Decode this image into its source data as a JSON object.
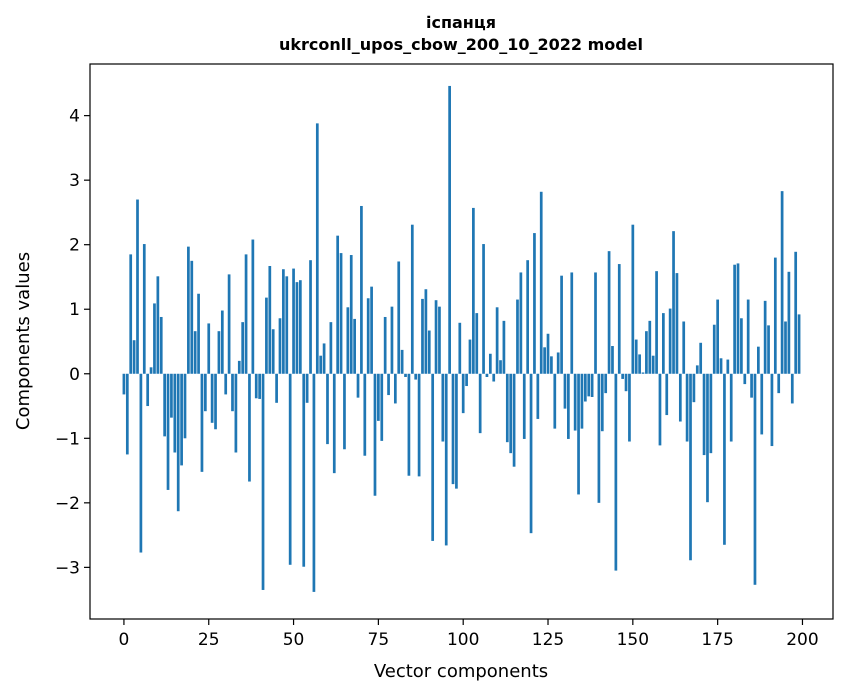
{
  "chart_data": {
    "type": "bar",
    "title_line1": "іспанця",
    "title_line2": "ukrconll_upos_cbow_200_10_2022 model",
    "xlabel": "Vector components",
    "ylabel": "Components values",
    "xlim": [
      -10,
      209
    ],
    "ylim": [
      -3.8,
      4.8
    ],
    "xticks": [
      0,
      25,
      50,
      75,
      100,
      125,
      150,
      175,
      200
    ],
    "yticks": [
      -3,
      -2,
      -1,
      0,
      1,
      2,
      3,
      4
    ],
    "ytick_labels": [
      "−3",
      "−2",
      "−1",
      "0",
      "1",
      "2",
      "3",
      "4"
    ],
    "bar_color": "#1f77b4",
    "grid": false,
    "values": [
      -0.32,
      -1.25,
      1.85,
      0.52,
      2.7,
      -2.77,
      2.01,
      -0.5,
      0.1,
      1.09,
      1.51,
      0.88,
      -0.97,
      -1.8,
      -0.68,
      -1.22,
      -2.13,
      -1.42,
      -1.0,
      1.97,
      1.75,
      0.66,
      1.24,
      -1.52,
      -0.58,
      0.78,
      -0.76,
      -0.86,
      0.66,
      0.98,
      -0.32,
      1.54,
      -0.58,
      -1.22,
      0.2,
      0.8,
      1.85,
      -1.67,
      2.08,
      -0.38,
      -0.39,
      -3.35,
      1.18,
      1.67,
      0.69,
      -0.45,
      0.86,
      1.62,
      1.51,
      -2.96,
      1.63,
      1.42,
      1.45,
      -2.99,
      -0.45,
      1.76,
      -3.38,
      3.88,
      0.28,
      0.47,
      -1.09,
      0.8,
      -1.54,
      2.14,
      1.87,
      -1.17,
      1.03,
      1.84,
      0.85,
      -0.37,
      2.6,
      -1.27,
      1.17,
      1.35,
      -1.89,
      -0.73,
      -1.04,
      0.88,
      -0.33,
      1.04,
      -0.46,
      1.74,
      0.37,
      -0.05,
      -1.58,
      2.31,
      -0.09,
      -1.59,
      1.16,
      1.31,
      0.67,
      -2.59,
      1.14,
      1.04,
      -1.05,
      -2.66,
      4.46,
      -1.71,
      -1.78,
      0.79,
      -0.61,
      -0.19,
      0.53,
      2.57,
      0.94,
      -0.92,
      2.01,
      -0.05,
      0.31,
      -0.12,
      1.03,
      0.21,
      0.82,
      -1.06,
      -1.23,
      -1.44,
      1.15,
      1.57,
      -1.01,
      1.76,
      -2.47,
      2.18,
      -0.7,
      2.82,
      0.41,
      0.62,
      0.27,
      -0.85,
      0.33,
      1.52,
      -0.54,
      -1.01,
      1.57,
      -0.88,
      -1.87,
      -0.85,
      -0.43,
      -0.35,
      -0.36,
      1.57,
      -2.0,
      -0.89,
      -0.3,
      1.9,
      0.43,
      -3.05,
      1.7,
      -0.08,
      -0.27,
      -1.05,
      2.31,
      0.53,
      0.3,
      0.02,
      0.66,
      0.82,
      0.28,
      1.59,
      -1.11,
      0.94,
      -0.64,
      1.01,
      2.21,
      1.56,
      -0.74,
      0.81,
      -1.05,
      -2.89,
      -0.44,
      0.13,
      0.48,
      -1.26,
      -1.99,
      -1.23,
      0.76,
      1.15,
      0.24,
      -2.65,
      0.22,
      -1.05,
      1.69,
      1.71,
      0.86,
      -0.16,
      1.15,
      -0.37,
      -3.27,
      0.42,
      -0.94,
      1.13,
      0.75,
      -1.12,
      1.8,
      -0.3,
      2.83,
      0.81,
      1.58,
      -0.46,
      1.89,
      0.92
    ]
  }
}
